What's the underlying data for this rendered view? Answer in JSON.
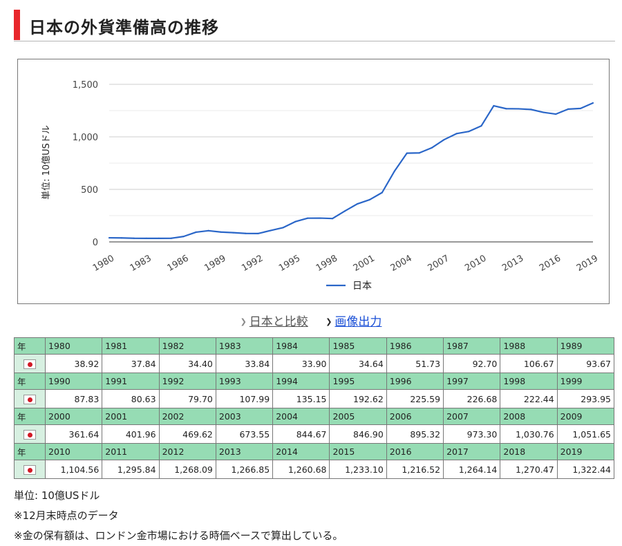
{
  "page": {
    "title": "日本の外貨準備高の推移",
    "links": {
      "compare": "日本と比較",
      "image": "画像出力"
    },
    "table": {
      "row_label": "年",
      "rows": [
        {
          "years": [
            "1980",
            "1981",
            "1982",
            "1983",
            "1984",
            "1985",
            "1986",
            "1987",
            "1988",
            "1989"
          ],
          "values": [
            "38.92",
            "37.84",
            "34.40",
            "33.84",
            "33.90",
            "34.64",
            "51.73",
            "92.70",
            "106.67",
            "93.67"
          ]
        },
        {
          "years": [
            "1990",
            "1991",
            "1992",
            "1993",
            "1994",
            "1995",
            "1996",
            "1997",
            "1998",
            "1999"
          ],
          "values": [
            "87.83",
            "80.63",
            "79.70",
            "107.99",
            "135.15",
            "192.62",
            "225.59",
            "226.68",
            "222.44",
            "293.95"
          ]
        },
        {
          "years": [
            "2000",
            "2001",
            "2002",
            "2003",
            "2004",
            "2005",
            "2006",
            "2007",
            "2008",
            "2009"
          ],
          "values": [
            "361.64",
            "401.96",
            "469.62",
            "673.55",
            "844.67",
            "846.90",
            "895.32",
            "973.30",
            "1,030.76",
            "1,051.65"
          ]
        },
        {
          "years": [
            "2010",
            "2011",
            "2012",
            "2013",
            "2014",
            "2015",
            "2016",
            "2017",
            "2018",
            "2019"
          ],
          "values": [
            "1,104.56",
            "1,295.84",
            "1,268.09",
            "1,266.85",
            "1,260.68",
            "1,233.10",
            "1,216.52",
            "1,264.14",
            "1,270.47",
            "1,322.44"
          ]
        }
      ]
    },
    "notes": [
      "単位: 10億USドル",
      "※12月末時点のデータ",
      "※金の保有額は、ロンドン金市場における時価ベースで算出している。"
    ]
  },
  "chart_data": {
    "type": "line",
    "title": "",
    "xlabel": "",
    "ylabel": "単位: 10億USドル",
    "ylim": [
      0,
      1500
    ],
    "yticks": [
      0,
      500,
      1000,
      1500
    ],
    "ytick_labels": [
      "0",
      "500",
      "1,000",
      "1,500"
    ],
    "xticks": [
      1980,
      1983,
      1986,
      1989,
      1992,
      1995,
      1998,
      2001,
      2004,
      2007,
      2010,
      2013,
      2016,
      2019
    ],
    "xlim": [
      1980,
      2019
    ],
    "legend": "bottom",
    "color": "#2a66c8",
    "series": [
      {
        "name": "日本",
        "x": [
          1980,
          1981,
          1982,
          1983,
          1984,
          1985,
          1986,
          1987,
          1988,
          1989,
          1990,
          1991,
          1992,
          1993,
          1994,
          1995,
          1996,
          1997,
          1998,
          1999,
          2000,
          2001,
          2002,
          2003,
          2004,
          2005,
          2006,
          2007,
          2008,
          2009,
          2010,
          2011,
          2012,
          2013,
          2014,
          2015,
          2016,
          2017,
          2018,
          2019
        ],
        "values": [
          38.92,
          37.84,
          34.4,
          33.84,
          33.9,
          34.64,
          51.73,
          92.7,
          106.67,
          93.67,
          87.83,
          80.63,
          79.7,
          107.99,
          135.15,
          192.62,
          225.59,
          226.68,
          222.44,
          293.95,
          361.64,
          401.96,
          469.62,
          673.55,
          844.67,
          846.9,
          895.32,
          973.3,
          1030.76,
          1051.65,
          1104.56,
          1295.84,
          1268.09,
          1266.85,
          1260.68,
          1233.1,
          1216.52,
          1264.14,
          1270.47,
          1322.44
        ]
      }
    ]
  }
}
